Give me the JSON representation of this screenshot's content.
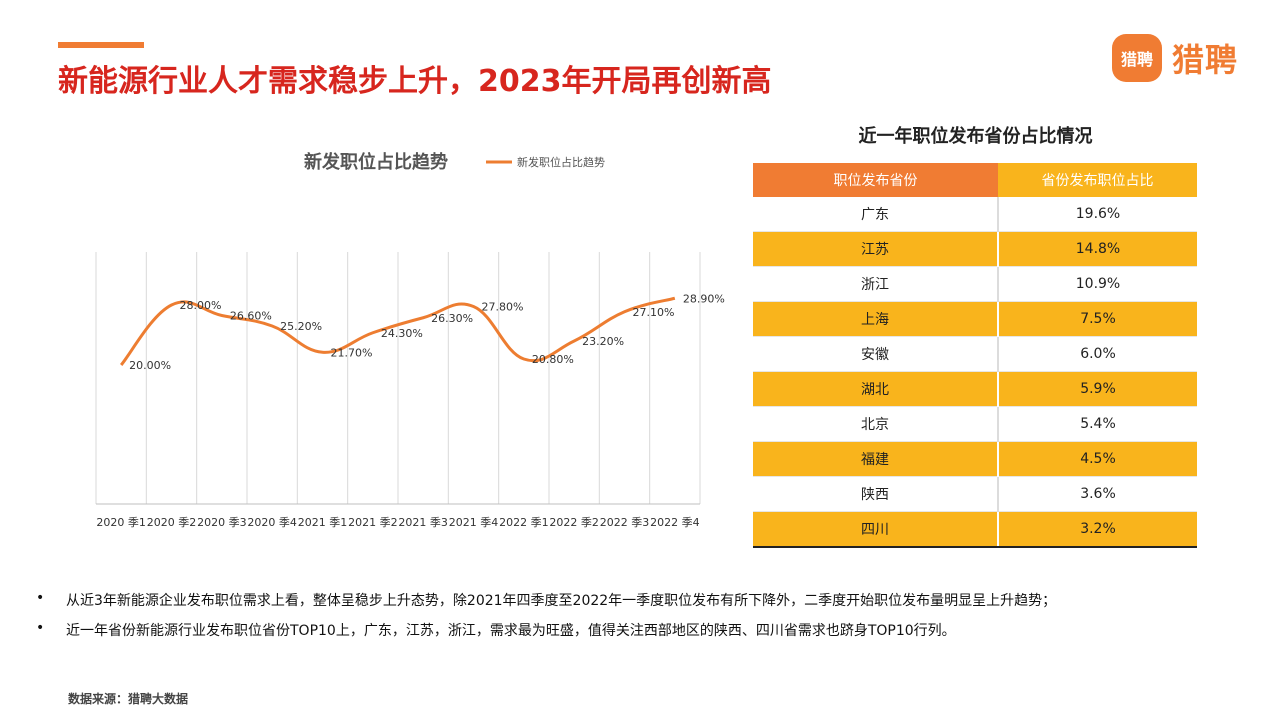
{
  "header": {
    "title": "新能源行业人才需求稳步上升，2023年开局再创新高",
    "logo_badge": "猎聘",
    "logo_text": "猎聘",
    "accent_color": "#F07C33",
    "title_color": "#D7261E"
  },
  "chart_data": {
    "type": "line",
    "title": "新发职位占比趋势",
    "legend": "新发职位占比趋势",
    "categories": [
      "2020 季1",
      "2020 季2",
      "2020 季3",
      "2020 季4",
      "2021 季1",
      "2021 季2",
      "2021 季3",
      "2021 季4",
      "2022 季1",
      "2022 季2",
      "2022 季3",
      "2022 季4"
    ],
    "series": [
      {
        "name": "新发职位占比趋势",
        "values": [
          20.0,
          28.0,
          26.6,
          25.2,
          21.7,
          24.3,
          26.3,
          27.8,
          20.8,
          23.2,
          27.1,
          28.9
        ],
        "labels": [
          "20.00%",
          "28.00%",
          "26.60%",
          "25.20%",
          "21.70%",
          "24.30%",
          "26.30%",
          "27.80%",
          "20.80%",
          "23.20%",
          "27.10%",
          "28.90%"
        ],
        "color": "#ED7D31"
      }
    ],
    "grid": "vertical",
    "legend_position": "top-right"
  },
  "table": {
    "title": "近一年职位发布省份占比情况",
    "headers": [
      "职位发布省份",
      "省份发布职位占比"
    ],
    "rows": [
      {
        "province": "广东",
        "share": "19.6%"
      },
      {
        "province": "江苏",
        "share": "14.8%"
      },
      {
        "province": "浙江",
        "share": "10.9%"
      },
      {
        "province": "上海",
        "share": "7.5%"
      },
      {
        "province": "安徽",
        "share": "6.0%"
      },
      {
        "province": "湖北",
        "share": "5.9%"
      },
      {
        "province": "北京",
        "share": "5.4%"
      },
      {
        "province": "福建",
        "share": "4.5%"
      },
      {
        "province": "陕西",
        "share": "3.6%"
      },
      {
        "province": "四川",
        "share": "3.2%"
      }
    ]
  },
  "bullets": [
    "从近3年新能源企业发布职位需求上看，整体呈稳步上升态势，除2021年四季度至2022年一季度职位发布有所下降外，二季度开始职位发布量明显呈上升趋势；",
    "近一年省份新能源行业发布职位省份TOP10上，广东，江苏，浙江，需求最为旺盛，值得关注西部地区的陕西、四川省需求也跻身TOP10行列。"
  ],
  "source": "数据来源：猎聘大数据"
}
